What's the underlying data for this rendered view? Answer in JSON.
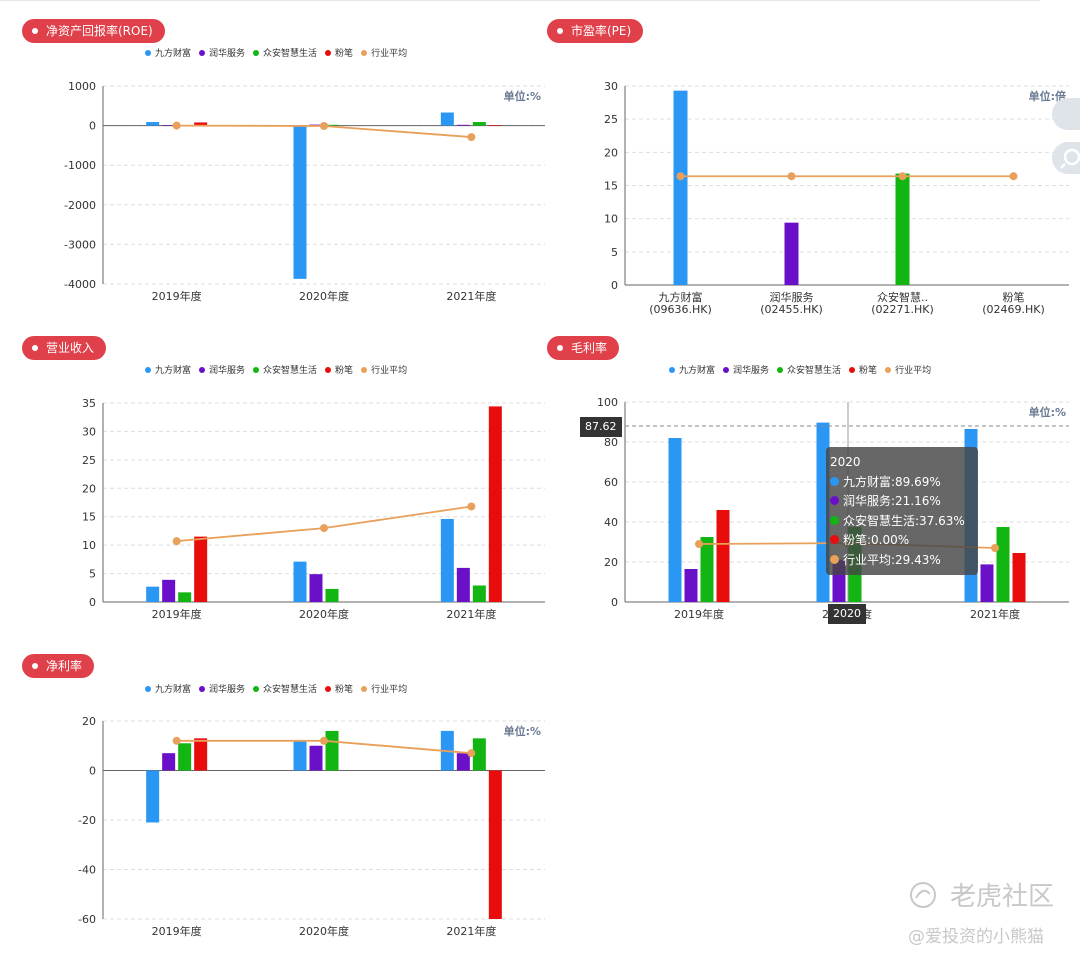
{
  "legend_items": [
    {
      "name": "九方财富",
      "color": "#2b97f5"
    },
    {
      "name": "润华服务",
      "color": "#6a10c8"
    },
    {
      "name": "众安智慧生活",
      "color": "#12b512"
    },
    {
      "name": "粉笔",
      "color": "#e80c0c"
    },
    {
      "name": "行业平均",
      "color": "#e8a05a"
    }
  ],
  "colors": {
    "badge": "#e0404a",
    "grid": "#dddddd",
    "axis": "#666666",
    "unit": "#6b7a93"
  },
  "panels": {
    "roe": {
      "title": "净资产回报率(ROE)",
      "unit": "单位:%"
    },
    "pe": {
      "title": "市盈率(PE)",
      "unit": "单位:倍"
    },
    "revenue": {
      "title": "营业收入"
    },
    "gross": {
      "title": "毛利率",
      "unit": "单位:%"
    },
    "net": {
      "title": "净利率"
    }
  },
  "tooltip": {
    "title": "2020",
    "rows": [
      {
        "text": "九方财富:89.69%",
        "color": "#2b97f5"
      },
      {
        "text": "润华服务:21.16%",
        "color": "#6a10c8"
      },
      {
        "text": "众安智慧生活:37.63%",
        "color": "#12b512"
      },
      {
        "text": "粉笔:0.00%",
        "color": "#e80c0c"
      },
      {
        "text": "行业平均:29.43%",
        "color": "#e8a05a"
      }
    ],
    "y_pointer": "87.62",
    "x_pointer": "2020"
  },
  "watermark": {
    "brand": "老虎社区",
    "author": "@爱投资的小熊猫"
  },
  "chart_data": [
    {
      "id": "roe",
      "type": "bar",
      "title": "净资产回报率(ROE)",
      "unit": "单位:%",
      "categories": [
        "2019年度",
        "2020年度",
        "2021年度"
      ],
      "ylim": [
        -4000,
        1000
      ],
      "yticks": [
        1000,
        0,
        -1000,
        -2000,
        -3000,
        -4000
      ],
      "series": [
        {
          "name": "九方财富",
          "values": [
            90,
            -3870,
            330
          ]
        },
        {
          "name": "润华服务",
          "values": [
            15,
            25,
            20
          ]
        },
        {
          "name": "众安智慧生活",
          "values": [
            10,
            20,
            90
          ]
        },
        {
          "name": "粉笔",
          "values": [
            80,
            0,
            15
          ]
        }
      ],
      "line": {
        "name": "行业平均",
        "values": [
          0,
          -10,
          -290
        ]
      },
      "grid": true,
      "legend": "top"
    },
    {
      "id": "pe",
      "type": "bar",
      "title": "市盈率(PE)",
      "unit": "单位:倍",
      "categories": [
        "九方财富\n(09636.HK)",
        "润华服务\n(02455.HK)",
        "众安智慧..\n(02271.HK)",
        "粉笔\n(02469.HK)"
      ],
      "ylim": [
        0,
        30
      ],
      "yticks": [
        30,
        25,
        20,
        15,
        10,
        5,
        0
      ],
      "values": [
        29.3,
        9.4,
        16.8,
        0
      ],
      "line": {
        "name": "行业平均",
        "values": [
          16.4,
          16.4,
          16.4,
          16.4
        ]
      },
      "grid": true
    },
    {
      "id": "revenue",
      "type": "bar",
      "title": "营业收入",
      "categories": [
        "2019年度",
        "2020年度",
        "2021年度"
      ],
      "ylim": [
        0,
        35
      ],
      "yticks": [
        35,
        30,
        25,
        20,
        15,
        10,
        5,
        0
      ],
      "series": [
        {
          "name": "九方财富",
          "values": [
            2.7,
            7.1,
            14.6
          ]
        },
        {
          "name": "润华服务",
          "values": [
            3.9,
            4.9,
            6.0
          ]
        },
        {
          "name": "众安智慧生活",
          "values": [
            1.7,
            2.3,
            2.9
          ]
        },
        {
          "name": "粉笔",
          "values": [
            11.5,
            0,
            34.4
          ]
        }
      ],
      "line": {
        "name": "行业平均",
        "values": [
          10.7,
          13.0,
          16.8
        ]
      },
      "grid": true,
      "legend": "top"
    },
    {
      "id": "gross",
      "type": "bar",
      "title": "毛利率",
      "unit": "单位:%",
      "categories": [
        "2019年度",
        "2020年度",
        "2021年度"
      ],
      "ylim": [
        0,
        100
      ],
      "yticks": [
        100,
        80,
        60,
        40,
        20,
        0
      ],
      "series": [
        {
          "name": "九方财富",
          "values": [
            82,
            89.69,
            86.5
          ]
        },
        {
          "name": "润华服务",
          "values": [
            16.5,
            21.16,
            18.8
          ]
        },
        {
          "name": "众安智慧生活",
          "values": [
            32.5,
            37.63,
            37.5
          ]
        },
        {
          "name": "粉笔",
          "values": [
            46,
            0,
            24.5
          ]
        }
      ],
      "line": {
        "name": "行业平均",
        "values": [
          29,
          29.43,
          27
        ]
      },
      "grid": true,
      "legend": "top"
    },
    {
      "id": "net",
      "type": "bar",
      "title": "净利率",
      "unit": "单位:%",
      "categories": [
        "2019年度",
        "2020年度",
        "2021年度"
      ],
      "ylim": [
        -60,
        20
      ],
      "yticks": [
        20,
        0,
        -20,
        -40,
        -60
      ],
      "series": [
        {
          "name": "九方财富",
          "values": [
            -21,
            12,
            16
          ]
        },
        {
          "name": "润华服务",
          "values": [
            7,
            10,
            7
          ]
        },
        {
          "name": "众安智慧生活",
          "values": [
            11,
            16,
            13
          ]
        },
        {
          "name": "粉笔",
          "values": [
            13,
            0,
            -60
          ]
        }
      ],
      "line": {
        "name": "行业平均",
        "values": [
          12,
          12,
          7
        ]
      },
      "grid": true,
      "legend": "top"
    }
  ]
}
